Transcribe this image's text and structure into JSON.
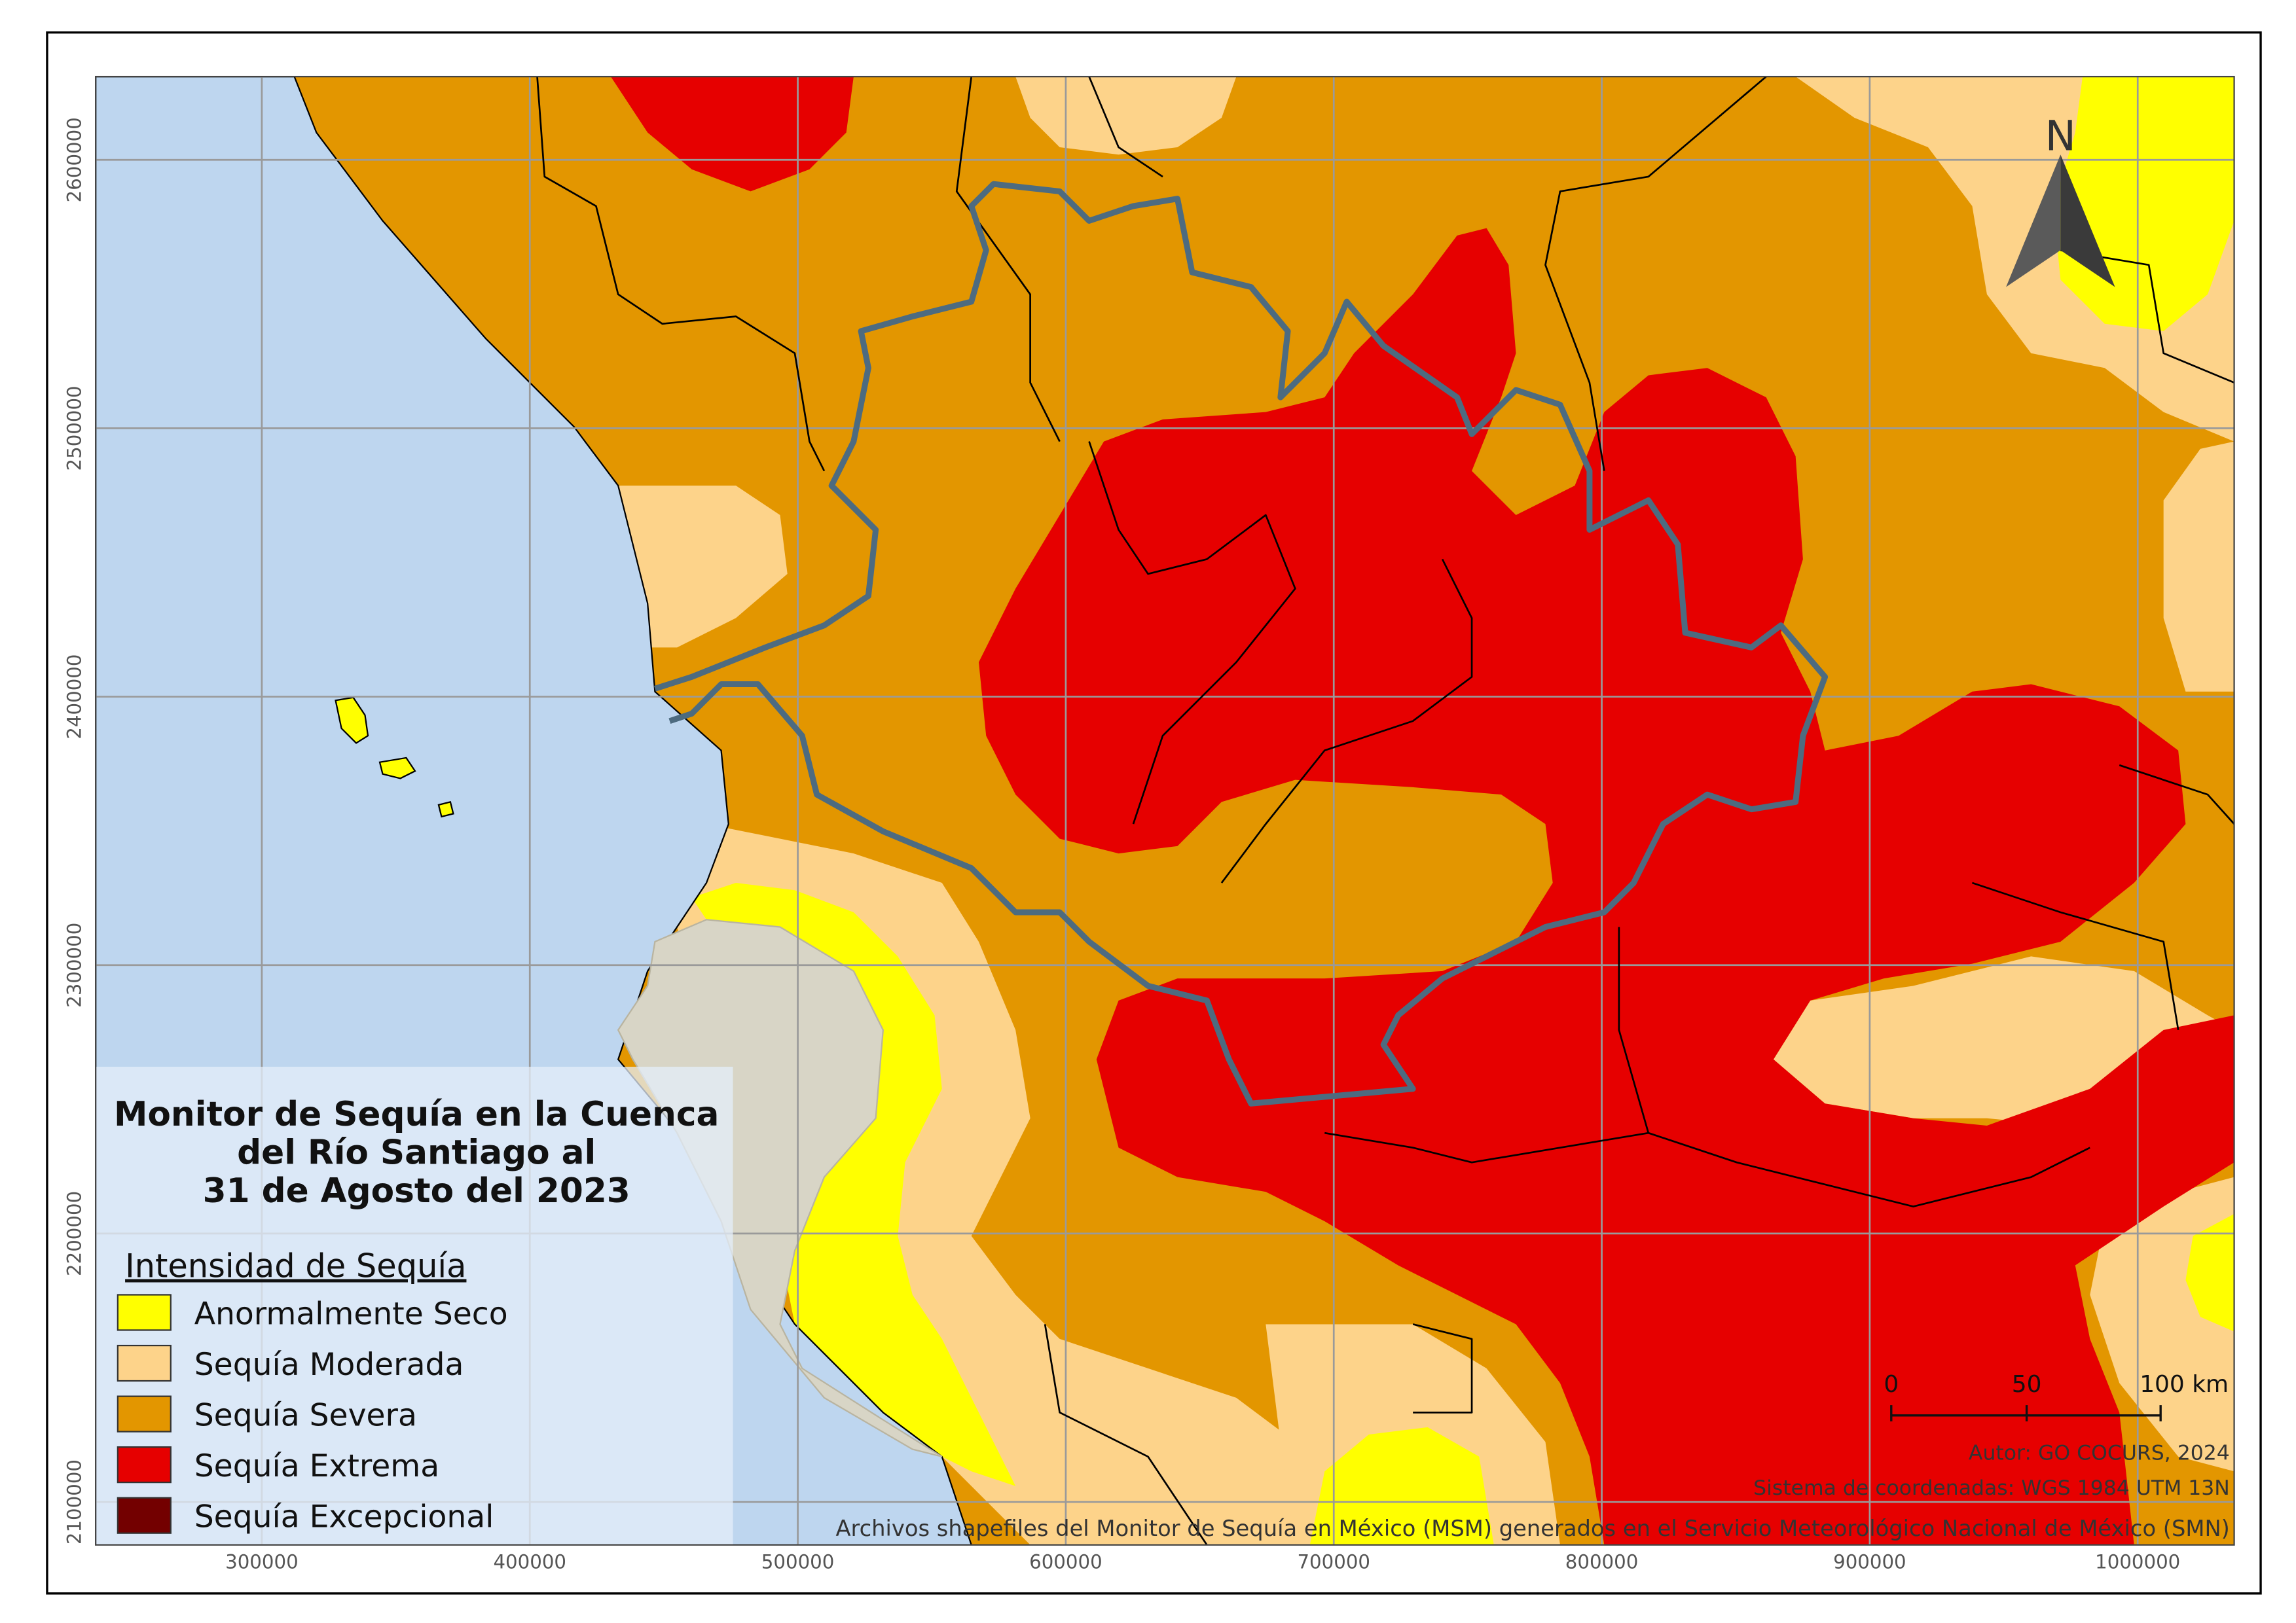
{
  "map": {
    "title_lines": [
      "Monitor de Sequía en la Cuenca",
      "del Río Santiago al",
      "31 de Agosto del 2023"
    ],
    "legend": {
      "title": "Intensidad de Sequía",
      "items": [
        {
          "label": "Anormalmente Seco",
          "color": "#ffff00"
        },
        {
          "label": "Sequía Moderada",
          "color": "#fdd38a"
        },
        {
          "label": "Sequía Severa",
          "color": "#e39600"
        },
        {
          "label": "Sequía Extrema",
          "color": "#e60000"
        },
        {
          "label": "Sequía Excepcional",
          "color": "#730000"
        }
      ]
    },
    "north_label": "N",
    "scale_bar_labels": [
      "0",
      "50",
      "100 km"
    ],
    "credits": [
      "Autor: GO COCURS, 2024",
      "Sistema de coordenadas: WGS 1984 UTM 13N",
      "Archivos shapefiles del Monitor de Sequía en México (MSM) generados en el Servicio Meteorológico Nacional de México (SMN)"
    ],
    "xlim": [
      238000,
      1036000
    ],
    "ylim": [
      2084000,
      2631000
    ],
    "xticks": [
      300000,
      400000,
      500000,
      600000,
      700000,
      800000,
      900000,
      1000000
    ],
    "yticks": [
      2100000,
      2200000,
      2300000,
      2400000,
      2500000,
      2600000
    ]
  }
}
